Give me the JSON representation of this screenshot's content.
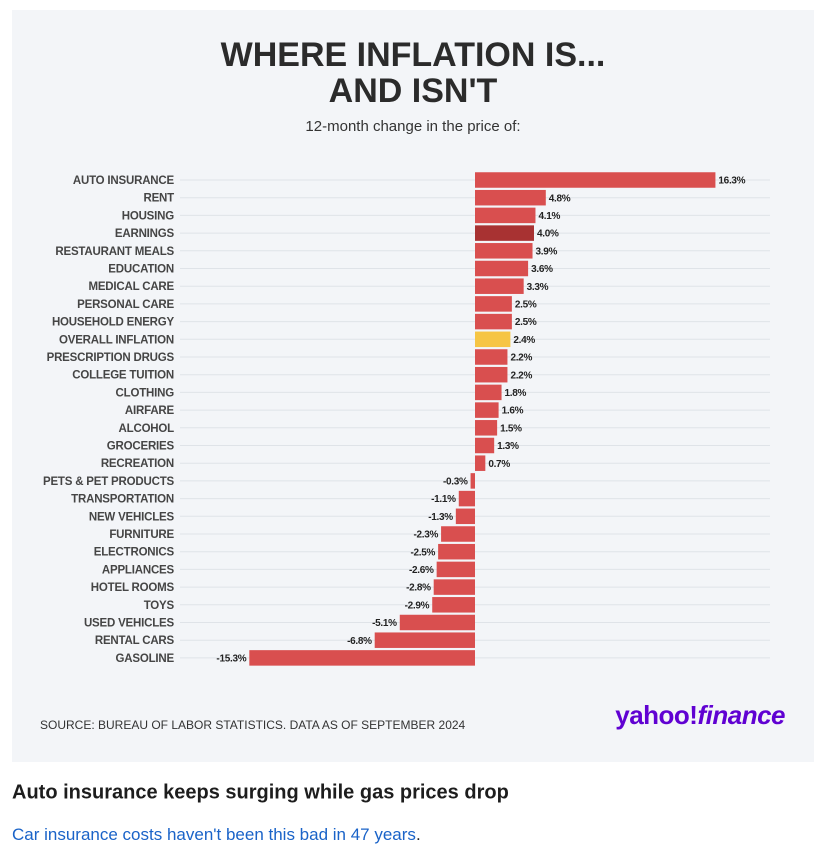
{
  "chart_data": {
    "type": "hbar",
    "title": [
      "WHERE INFLATION IS...",
      "AND ISN'T"
    ],
    "subtitle": "12-month change in the price of:",
    "categories": [
      "AUTO INSURANCE",
      "RENT",
      "HOUSING",
      "EARNINGS",
      "RESTAURANT MEALS",
      "EDUCATION",
      "MEDICAL CARE",
      "PERSONAL CARE",
      "HOUSEHOLD ENERGY",
      "OVERALL INFLATION",
      "PRESCRIPTION DRUGS",
      "COLLEGE TUITION",
      "CLOTHING",
      "AIRFARE",
      "ALCOHOL",
      "GROCERIES",
      "RECREATION",
      "PETS & PET PRODUCTS",
      "TRANSPORTATION",
      "NEW VEHICLES",
      "FURNITURE",
      "ELECTRONICS",
      "APPLIANCES",
      "HOTEL ROOMS",
      "TOYS",
      "USED VEHICLES",
      "RENTAL CARS",
      "GASOLINE"
    ],
    "values": [
      16.3,
      4.8,
      4.1,
      4.0,
      3.9,
      3.6,
      3.3,
      2.5,
      2.5,
      2.4,
      2.2,
      2.2,
      1.8,
      1.6,
      1.5,
      1.3,
      0.7,
      -0.3,
      -1.1,
      -1.3,
      -2.3,
      -2.5,
      -2.6,
      -2.8,
      -2.9,
      -5.1,
      -6.8,
      -15.3
    ],
    "value_labels": [
      "16.3%",
      "4.8%",
      "4.1%",
      "4.0%",
      "3.9%",
      "3.6%",
      "3.3%",
      "2.5%",
      "2.5%",
      "2.4%",
      "2.2%",
      "2.2%",
      "1.8%",
      "1.6%",
      "1.5%",
      "1.3%",
      "0.7%",
      "-0.3%",
      "-1.1%",
      "-1.3%",
      "-2.3%",
      "-2.5%",
      "-2.6%",
      "-2.8%",
      "-2.9%",
      "-5.1%",
      "-6.8%",
      "-15.3%"
    ],
    "color": "#d94f4f",
    "highlight_colors": {
      "3": "#a83232",
      "9": "#f6c544"
    },
    "xlim": [
      -20,
      20
    ],
    "source": "SOURCE: BUREAU OF LABOR STATISTICS. DATA AS OF SEPTEMBER 2024"
  },
  "logo": {
    "brand": "yahoo!",
    "product": "finance"
  },
  "caption": {
    "headline": "Auto insurance keeps surging while gas prices drop",
    "link": "Car insurance costs haven't been this bad in 47 years",
    "trailing": "."
  }
}
